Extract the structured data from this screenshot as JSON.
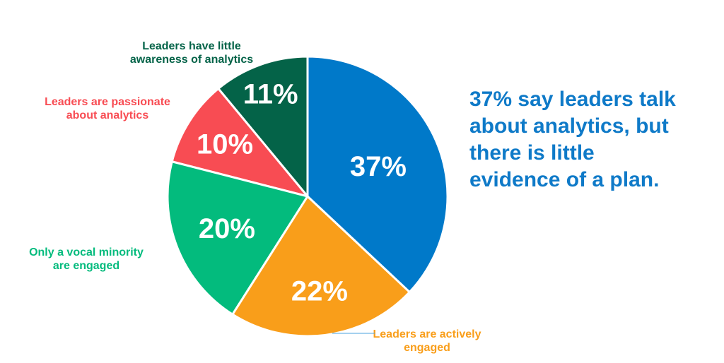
{
  "chart_data": {
    "type": "pie",
    "categories": [
      "Leaders have little awareness of analytics",
      "Leaders are passionate about analytics",
      "Only a vocal minority are engaged",
      "Leaders are actively engaged",
      ""
    ],
    "values": [
      11,
      10,
      20,
      22,
      37
    ],
    "value_labels": [
      "11%",
      "10%",
      "20%",
      "22%",
      "37%"
    ],
    "colors": [
      "#046348",
      "#f84c53",
      "#03bb7d",
      "#f99e1a",
      "#0079c9"
    ],
    "label_colors": [
      "#046348",
      "#f84c53",
      "#03bb7d",
      "#f99e1a",
      ""
    ],
    "label_lines": [
      [
        "Leaders have little",
        "awareness of analytics"
      ],
      [
        "Leaders are passionate",
        "about analytics"
      ],
      [
        "Only a vocal minority",
        "are engaged"
      ],
      [
        "Leaders are actively",
        "engaged"
      ],
      []
    ],
    "start_angle_deg": 0,
    "direction": "counterclockwise",
    "legend": "none"
  },
  "callout": {
    "text": "37% say leaders talk\nabout analytics, but\nthere is little\nevidence of a plan.",
    "color": "#0f7ac8"
  }
}
